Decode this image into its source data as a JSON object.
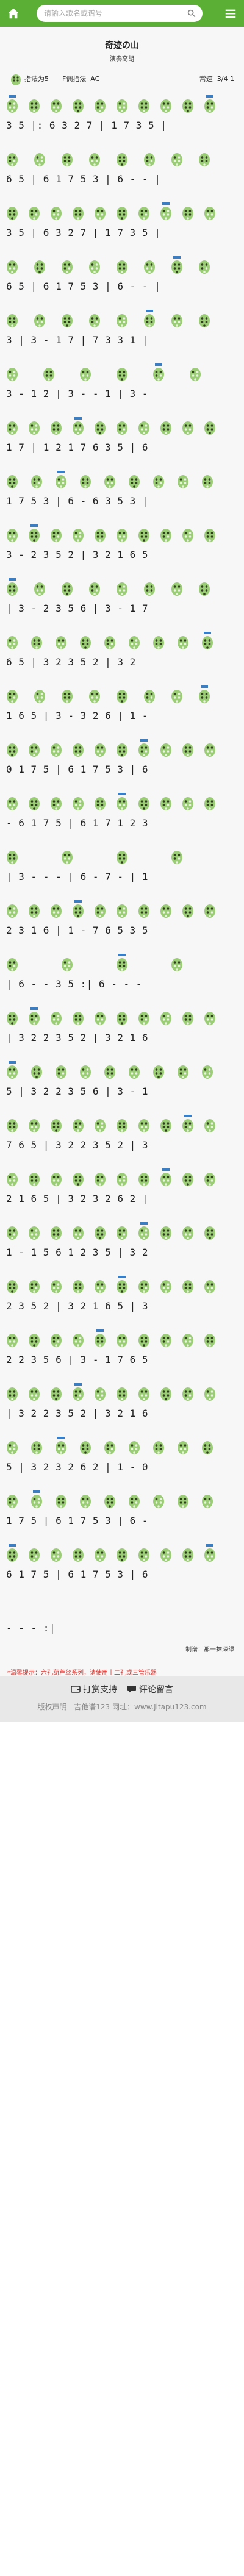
{
  "header": {
    "search_placeholder": "请输入歌名或谱号",
    "home_icon": "home-icon",
    "search_icon": "search-icon",
    "menu_icon": "menu-icon"
  },
  "sheet": {
    "title": "奇迹の山",
    "subtitle": "演奏高胡",
    "fingering_label": "指法为",
    "fingering_note": "5",
    "key_label": "F调指法",
    "key_range": "AC",
    "meter_label": "常速",
    "meter": "3/4 1"
  },
  "rows": [
    {
      "notes": "3 5 |: 6 3 2 7 | 1 7 3 5 |"
    },
    {
      "notes": "6 5 | 6 1 7 5 3 | 6 - - |"
    },
    {
      "notes": "3 5 | 6 3 2 7 | 1 7 3 5 |"
    },
    {
      "notes": "6 5 | 6 1 7 5 3 | 6 - - |"
    },
    {
      "notes": "3 | 3 - 1 7 | 7 3 3 1 |"
    },
    {
      "notes": "3 - 1 2 | 3 - - 1 | 3 -"
    },
    {
      "notes": "1 7 | 1 2 1 7 6 3 5 | 6"
    },
    {
      "notes": "1 7 5 3 | 6 - 6 3 5 3 |"
    },
    {
      "notes": "3 - 2 3 5 2 | 3 2 1 6 5"
    },
    {
      "notes": "| 3 - 2 3 5 6 | 3 - 1 7"
    },
    {
      "notes": "6 5 | 3 2 3 5 2 | 3 2"
    },
    {
      "notes": "1 6 5 | 3 - 3 2 6 | 1 -"
    },
    {
      "notes": "0 1 7 5 | 6 1 7 5 3 | 6"
    },
    {
      "notes": "- 6 1 7 5 | 6 1 7 1 2 3"
    },
    {
      "notes": "| 3 - - - | 6 - 7 - | 1"
    },
    {
      "notes": "2 3 1 6 | 1 - 7 6 5 3 5"
    },
    {
      "notes": "| 6 - - 3 5 :| 6 - - -"
    },
    {
      "notes": "| 3 2 2 3 5 2 | 3 2 1 6"
    },
    {
      "notes": "5 | 3 2 2 3 5 6 | 3 - 1"
    },
    {
      "notes": "7 6 5 | 3 2 2 3 5 2 | 3"
    },
    {
      "notes": "2 1 6 5 | 3 2 3 2 6 2 |"
    },
    {
      "notes": "1 - 1 5 6 1 2 3 5 | 3 2"
    },
    {
      "notes": "2 3 5 2 | 3 2 1 6 5 | 3"
    },
    {
      "notes": "2 2 3 5 6 | 3 - 1 7 6 5"
    },
    {
      "notes": "| 3 2 2 3 5 2 | 3 2 1 6"
    },
    {
      "notes": "5 | 3 2 3 2 6 2 | 1 - 0"
    },
    {
      "notes": "1 7 5 | 6 1 7 5 3 | 6 -"
    },
    {
      "notes": "6 1 7 5 | 6 1 7 5 3 | 6"
    },
    {
      "notes": "- - - :|"
    }
  ],
  "credit": "制谱：那一抹深绿",
  "tip": "*温馨提示：六孔葫芦丝系列，请使用十二孔或三管乐器",
  "footer": {
    "donate_label": "打赏支持",
    "comment_label": "评论留言",
    "disclaimer": "版权声明",
    "site": "吉他谱123 网址：www.Jitapu123.com"
  },
  "colors": {
    "brand_green": "#5aaf34",
    "hole_green": "#9bcc76",
    "hole_dark": "#2f3f1f",
    "tip_red": "#e0302a",
    "mark_blue": "#3a7fc6"
  }
}
